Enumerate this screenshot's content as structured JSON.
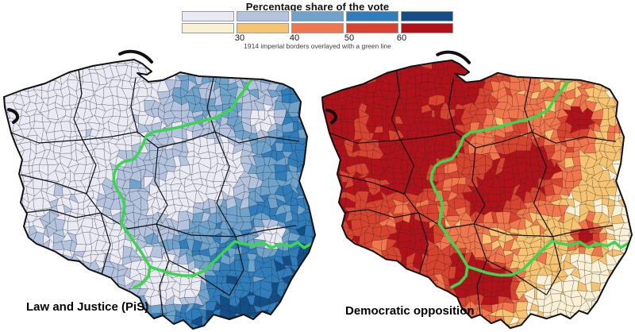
{
  "legend": {
    "title": "Percentage share of the vote",
    "note": "1914 imperial borders overlayed with a green line",
    "tick_labels": [
      "30",
      "40",
      "50",
      "60"
    ],
    "blue_palette": [
      "#e9eaf4",
      "#b4c3de",
      "#6fa3cb",
      "#2f7ebb",
      "#134f86"
    ],
    "red_palette": [
      "#f9f0d5",
      "#f5c372",
      "#f1764d",
      "#d8432f",
      "#b1121a"
    ],
    "border_line_color": "#3cd450"
  },
  "maps": [
    {
      "id": "pis",
      "label": "Law and Justice (PiS)",
      "scheme": "blues",
      "high_share_side": "east"
    },
    {
      "id": "opposition",
      "label": "Democratic opposition",
      "scheme": "reds",
      "high_share_side": "west"
    }
  ]
}
